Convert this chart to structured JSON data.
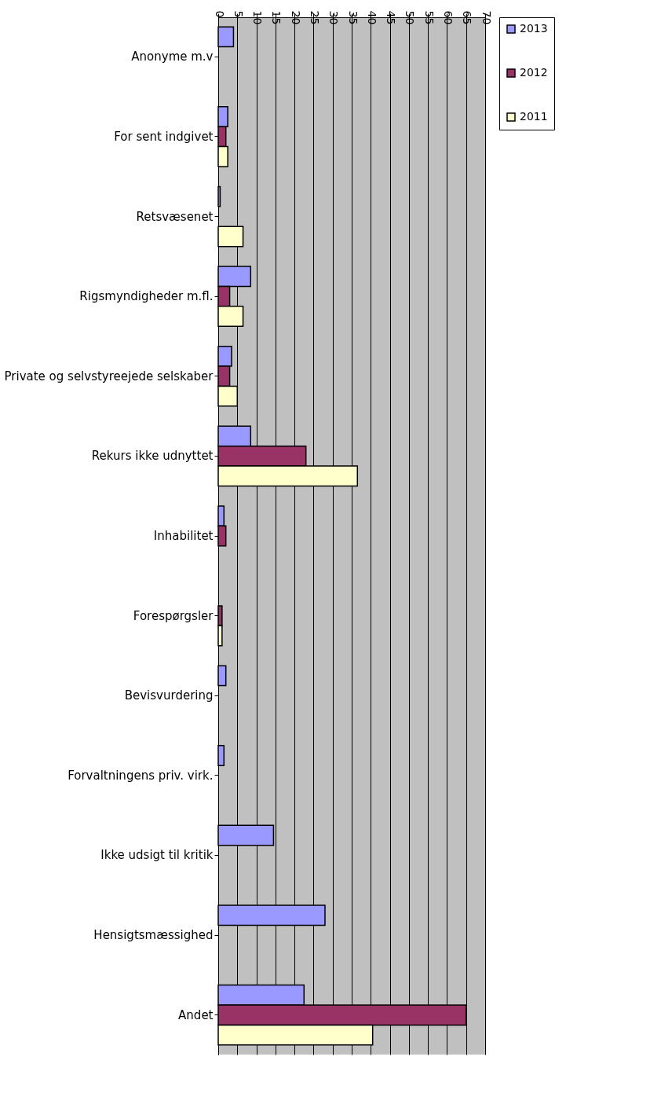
{
  "chart_data": {
    "type": "bar",
    "orientation": "horizontal",
    "categories": [
      "Anonyme m.v",
      "For sent indgivet",
      "Retsvæsenet",
      "Rigsmyndigheder m.fl.",
      "Private og selvstyreejede selskaber",
      "Rekurs ikke udnyttet",
      "Inhabilitet",
      "Forespørgsler",
      "Bevisvurdering",
      "Forvaltningens priv. virk.",
      "Ikke udsigt til kritik",
      "Hensigtsmæssighed",
      "Andet"
    ],
    "series": [
      {
        "name": "2013",
        "color": "#9999ff",
        "values": [
          4,
          2.5,
          0.5,
          8.5,
          3.5,
          8.5,
          1.5,
          null,
          2,
          1.5,
          14.5,
          28,
          22.5
        ]
      },
      {
        "name": "2012",
        "color": "#993366",
        "values": [
          null,
          2,
          null,
          3,
          3,
          23,
          2,
          1,
          null,
          null,
          null,
          null,
          65
        ]
      },
      {
        "name": "2011",
        "color": "#ffffcc",
        "values": [
          null,
          2.5,
          6.5,
          6.5,
          5,
          36.5,
          null,
          1,
          null,
          null,
          null,
          null,
          40.5
        ]
      }
    ],
    "xlim": [
      0,
      70
    ],
    "xticks": [
      0,
      5,
      10,
      15,
      20,
      25,
      30,
      35,
      40,
      45,
      50,
      55,
      60,
      65,
      70
    ],
    "grid": "x",
    "legend": "right"
  }
}
